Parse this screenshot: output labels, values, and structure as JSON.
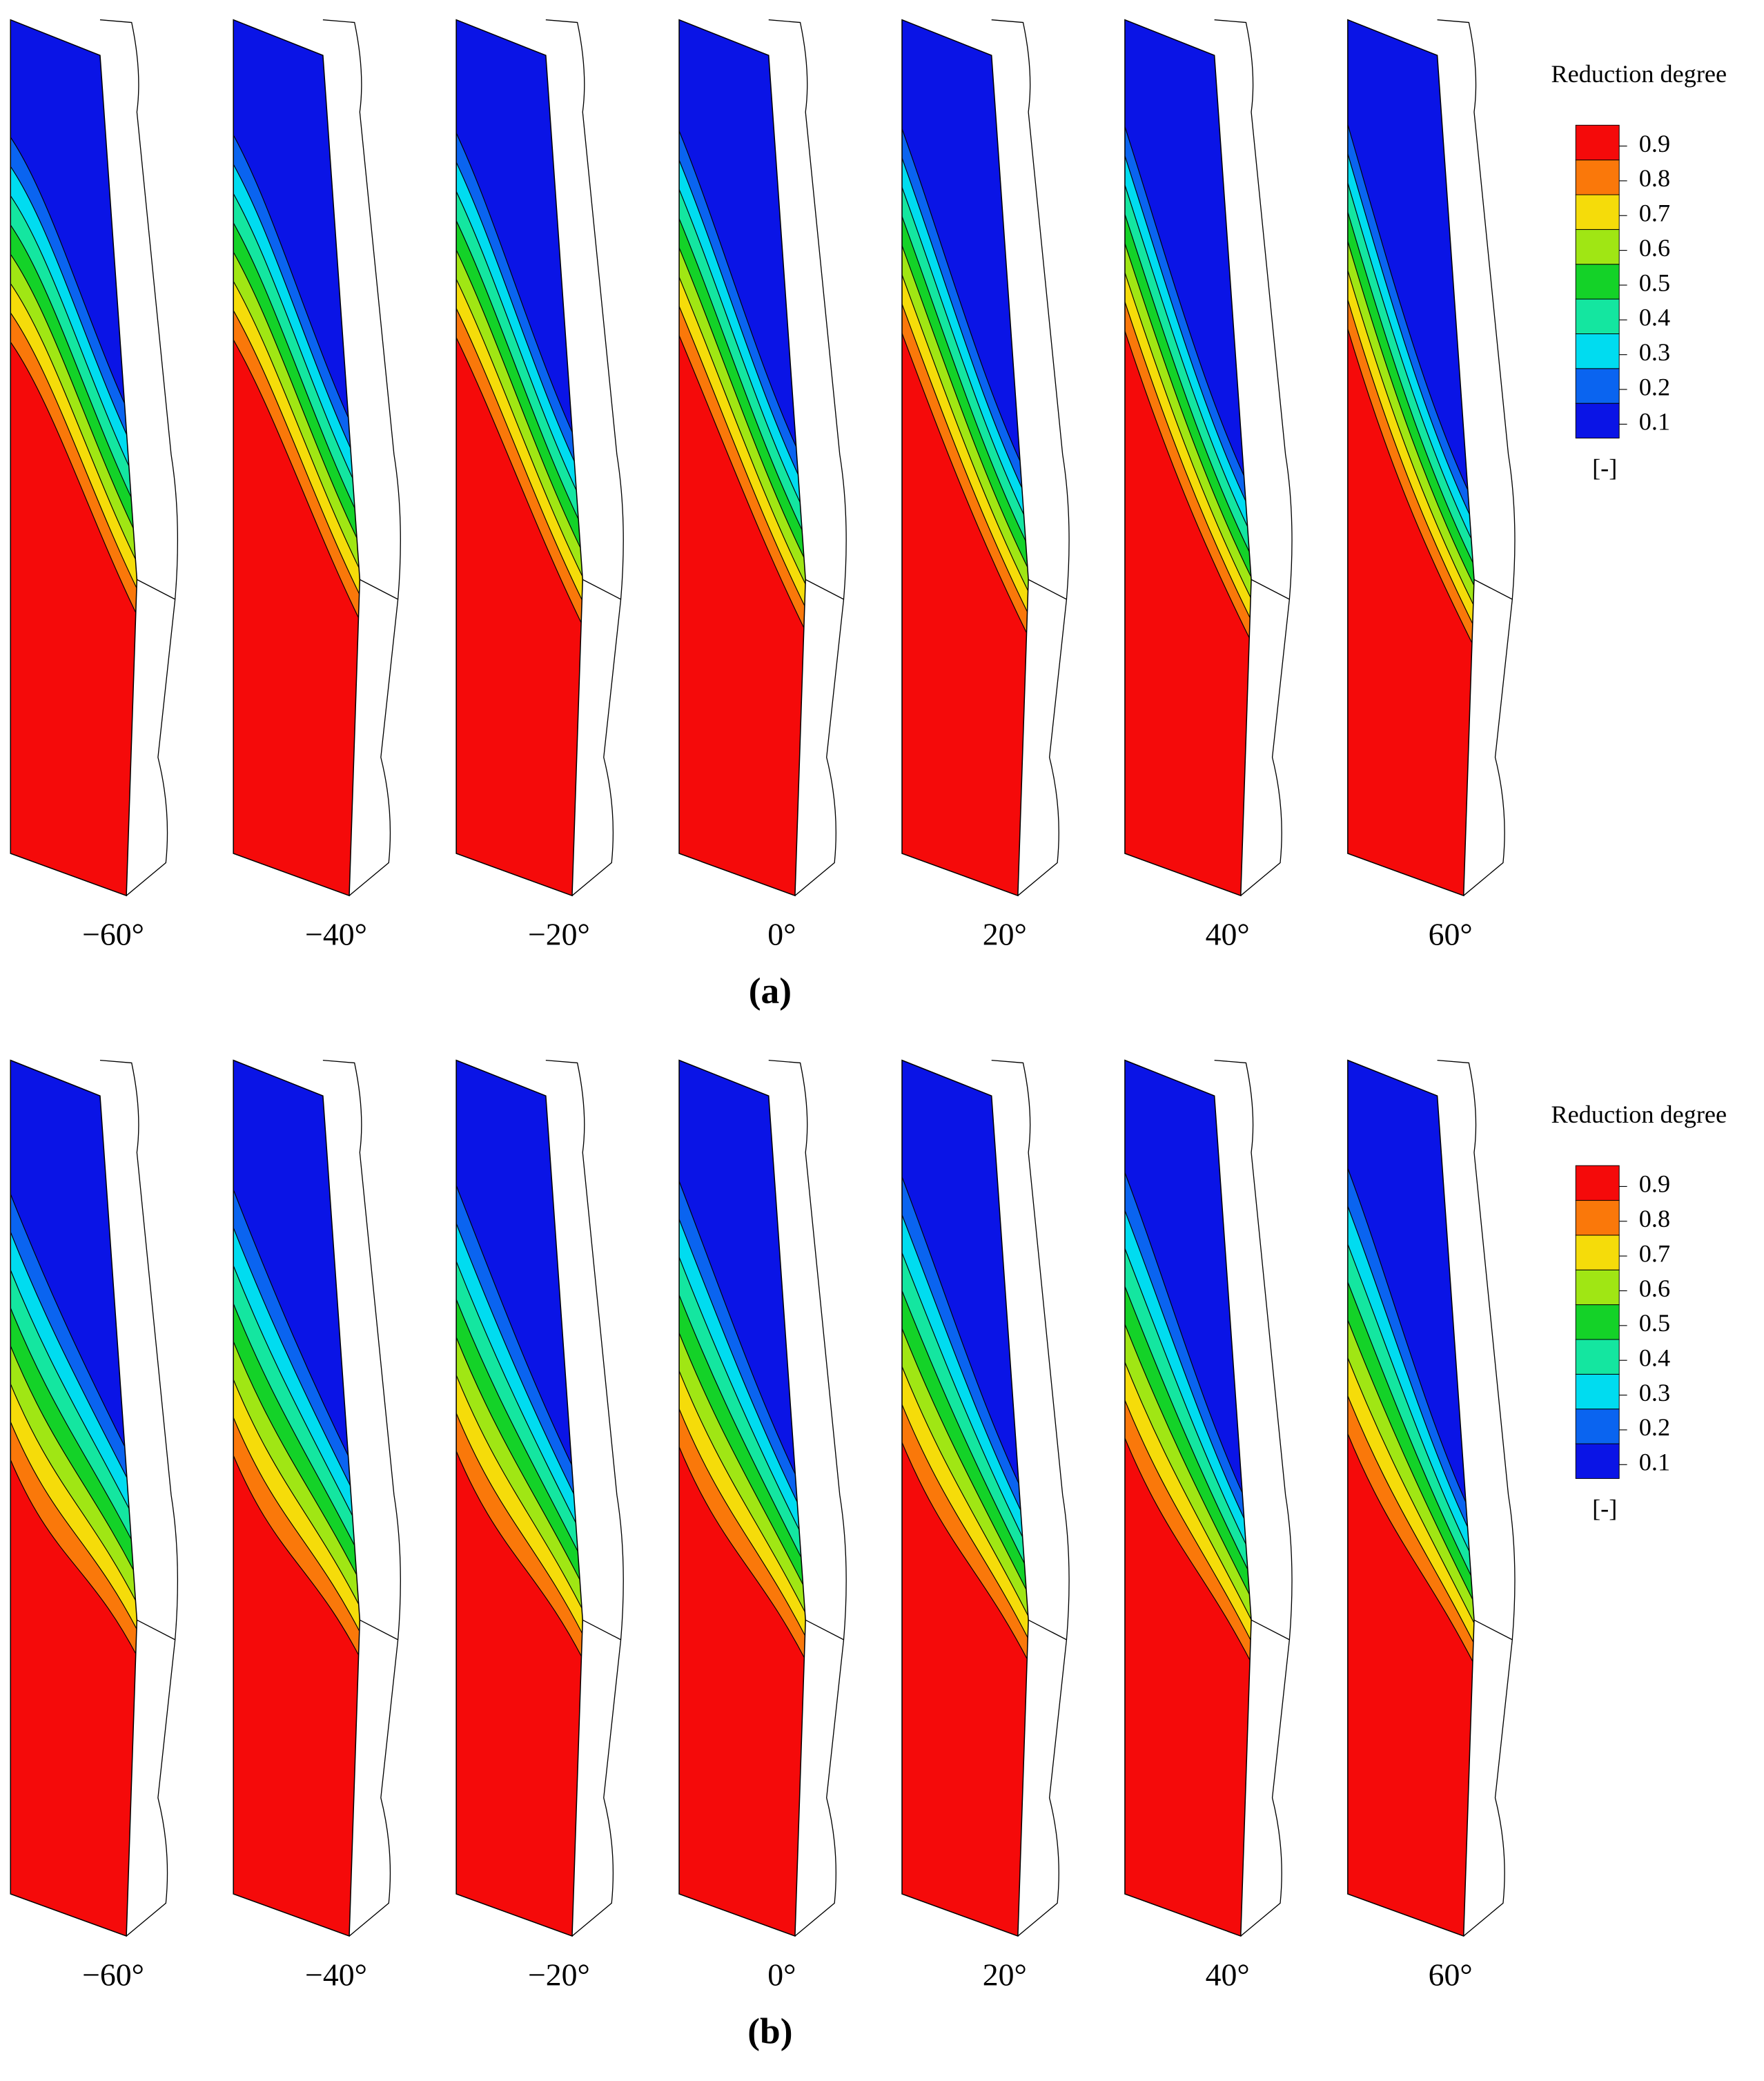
{
  "chart_data": [
    {
      "type": "contour",
      "caption": "(a)",
      "legend_title": "Reduction degree",
      "unit": "[-]",
      "categories": [
        "−60°",
        "−40°",
        "−20°",
        "0°",
        "20°",
        "40°",
        "60°"
      ],
      "levels": [
        0.1,
        0.2,
        0.3,
        0.4,
        0.5,
        0.6,
        0.7,
        0.8,
        0.9
      ],
      "colors": [
        "#0a14e6",
        "#0a64f0",
        "#00dcf0",
        "#14e6a0",
        "#14d228",
        "#a0e614",
        "#f5dc0a",
        "#fa780a",
        "#f50a0a"
      ]
    },
    {
      "type": "contour",
      "caption": "(b)",
      "legend_title": "Reduction degree",
      "unit": "[-]",
      "categories": [
        "−60°",
        "−40°",
        "−20°",
        "0°",
        "20°",
        "40°",
        "60°"
      ],
      "levels": [
        0.1,
        0.2,
        0.3,
        0.4,
        0.5,
        0.6,
        0.7,
        0.8,
        0.9
      ],
      "colors": [
        "#0a14e6",
        "#0a64f0",
        "#00dcf0",
        "#14e6a0",
        "#14d228",
        "#a0e614",
        "#f5dc0a",
        "#fa780a",
        "#f50a0a"
      ]
    }
  ]
}
